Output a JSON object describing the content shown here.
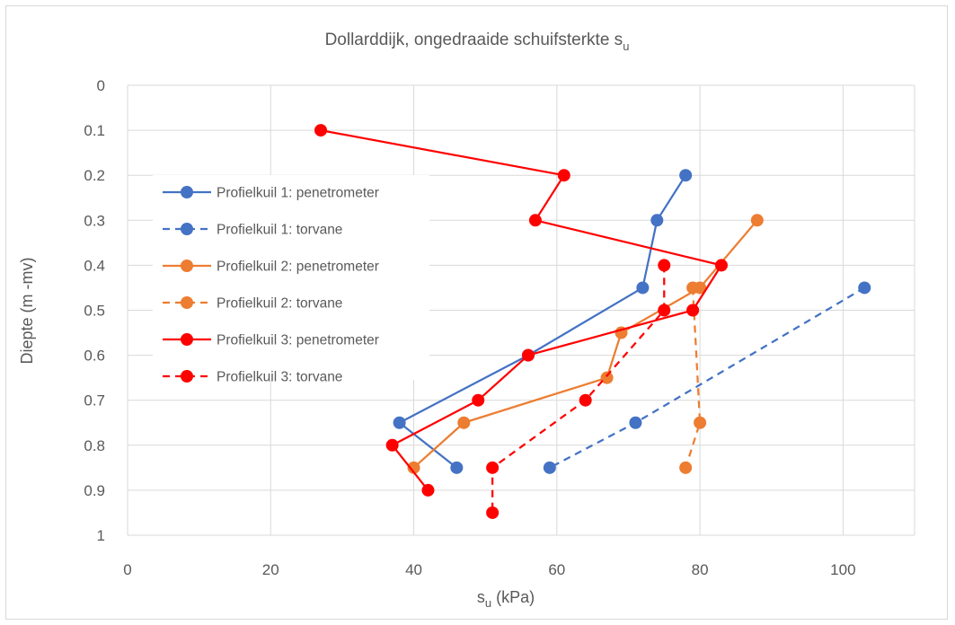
{
  "chart_data": {
    "type": "line",
    "title": {
      "text": "Dollarddijk, ongedraaide schuifsterkte s",
      "subscript": "u"
    },
    "xlabel": {
      "pre": "s",
      "subscript": "u",
      "post": " (kPa)"
    },
    "ylabel": "Diepte (m -mv)",
    "xlim": [
      0,
      110
    ],
    "ylim": [
      0,
      1
    ],
    "y_inverted": true,
    "x_ticks": [
      0,
      20,
      40,
      60,
      80,
      100
    ],
    "x_tick_labels": [
      "0",
      "20",
      "40",
      "60",
      "80",
      "100"
    ],
    "y_ticks": [
      0,
      0.1,
      0.2,
      0.3,
      0.4,
      0.5,
      0.6,
      0.7,
      0.8,
      0.9,
      1
    ],
    "y_tick_labels": [
      "0",
      "0.1",
      "0.2",
      "0.3",
      "0.4",
      "0.5",
      "0.6",
      "0.7",
      "0.8",
      "0.9",
      "1"
    ],
    "grid": "both",
    "legend_position": "left",
    "series": [
      {
        "name": "Profielkuil 1: penetrometer",
        "color": "#4472C4",
        "dash": "solid",
        "points": [
          [
            78,
            0.2
          ],
          [
            74,
            0.3
          ],
          [
            72,
            0.45
          ],
          [
            56,
            0.6
          ],
          [
            38,
            0.75
          ],
          [
            46,
            0.85
          ]
        ]
      },
      {
        "name": "Profielkuil 1: torvane",
        "color": "#4472C4",
        "dash": "dashed",
        "points": [
          [
            103,
            0.45
          ],
          [
            71,
            0.75
          ],
          [
            59,
            0.85
          ]
        ]
      },
      {
        "name": "Profielkuil 2: penetrometer",
        "color": "#ED7D31",
        "dash": "solid",
        "points": [
          [
            88,
            0.3
          ],
          [
            80,
            0.45
          ],
          [
            69,
            0.55
          ],
          [
            67,
            0.65
          ],
          [
            47,
            0.75
          ],
          [
            40,
            0.85
          ]
        ]
      },
      {
        "name": "Profielkuil 2: torvane",
        "color": "#ED7D31",
        "dash": "dashed",
        "points": [
          [
            79,
            0.45
          ],
          [
            80,
            0.75
          ],
          [
            78,
            0.85
          ]
        ]
      },
      {
        "name": "Profielkuil 3: penetrometer",
        "color": "#FF0000",
        "dash": "solid",
        "points": [
          [
            27,
            0.1
          ],
          [
            61,
            0.2
          ],
          [
            57,
            0.3
          ],
          [
            83,
            0.4
          ],
          [
            79,
            0.5
          ],
          [
            56,
            0.6
          ],
          [
            49,
            0.7
          ],
          [
            37,
            0.8
          ],
          [
            42,
            0.9
          ]
        ]
      },
      {
        "name": "Profielkuil 3: torvane",
        "color": "#FF0000",
        "dash": "dashed",
        "points": [
          [
            75,
            0.4
          ],
          [
            75,
            0.5
          ],
          [
            64,
            0.7
          ],
          [
            51,
            0.85
          ],
          [
            51,
            0.95
          ]
        ]
      }
    ]
  }
}
